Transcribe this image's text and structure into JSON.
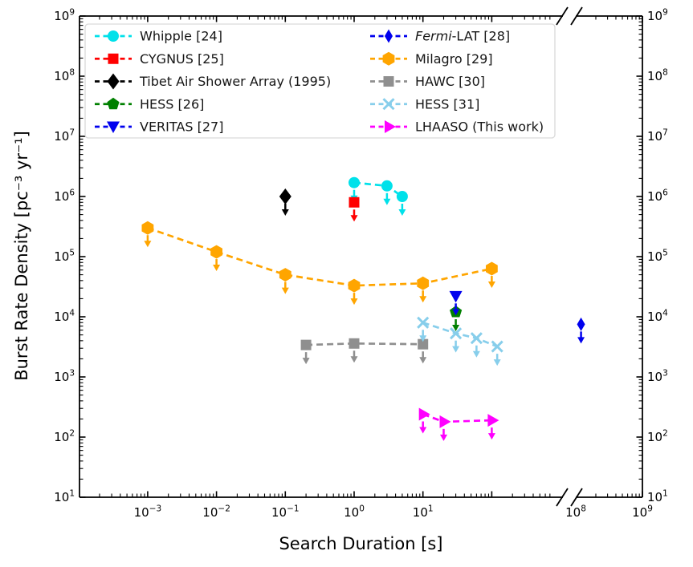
{
  "figure": {
    "xlabel": "Search Duration [s]",
    "ylabel": "Burst Rate Density [pc⁻³ yr⁻¹]"
  },
  "chart_data": {
    "type": "scatter",
    "title": "",
    "xlabel": "Search Duration [s]",
    "ylabel": "Burst Rate Density [pc⁻³ yr⁻¹]",
    "x_scale": "log",
    "y_scale": "log",
    "grid": false,
    "x_tick_exponents_left_segment": [
      -3,
      -2,
      -1,
      0,
      1
    ],
    "x_tick_exponents_right_segment": [
      8,
      9
    ],
    "x_axis_break": {
      "hidden_decades_between_exponents": [
        3,
        8
      ]
    },
    "y_tick_exponents": [
      1,
      2,
      3,
      4,
      5,
      6,
      7,
      8,
      9
    ],
    "y_axis_mirrored_labels": true,
    "legend": {
      "position": "upper left",
      "columns": 2,
      "frame": true
    },
    "all_points_are_upper_limits": true,
    "series": [
      {
        "slug": "whipple",
        "label": "Whipple [24]",
        "color": "#00e1ea",
        "marker": "circle",
        "column": 1,
        "points": [
          [
            1,
            1700000
          ],
          [
            3,
            1500000
          ],
          [
            5,
            1000000
          ]
        ]
      },
      {
        "slug": "cygnus",
        "label": "CYGNUS [25]",
        "color": "#ff0000",
        "marker": "square",
        "column": 1,
        "points": [
          [
            1,
            800000
          ]
        ]
      },
      {
        "slug": "tibet",
        "label": "Tibet Air Shower Array (1995)",
        "color": "#000000",
        "marker": "diamond",
        "column": 1,
        "points": [
          [
            0.1,
            1000000
          ]
        ]
      },
      {
        "slug": "hess-26",
        "label": "HESS [26]",
        "color": "#008000",
        "marker": "pentagon",
        "column": 1,
        "points": [
          [
            30,
            12000
          ]
        ]
      },
      {
        "slug": "veritas",
        "label": "VERITAS [27]",
        "color": "#0000ee",
        "marker": "triangle-down",
        "column": 1,
        "points": [
          [
            30,
            22000
          ]
        ]
      },
      {
        "slug": "fermi-lat",
        "label": "Fermi-LAT [28]",
        "italic_prefix": "Fermi",
        "color": "#0000ee",
        "marker": "thin-diamond",
        "column": 2,
        "points": [
          [
            120000000,
            7500
          ]
        ]
      },
      {
        "slug": "milagro",
        "label": "Milagro [29]",
        "color": "#ffa500",
        "marker": "hexagon",
        "column": 2,
        "points": [
          [
            0.001,
            300000
          ],
          [
            0.01,
            120000
          ],
          [
            0.1,
            50000
          ],
          [
            1,
            33000
          ],
          [
            10,
            36000
          ],
          [
            100,
            63000
          ]
        ]
      },
      {
        "slug": "hawc",
        "label": "HAWC [30]",
        "color": "#8f8f8f",
        "marker": "square",
        "column": 2,
        "points": [
          [
            0.2,
            3400
          ],
          [
            1,
            3600
          ],
          [
            10,
            3500
          ]
        ]
      },
      {
        "slug": "hess-31",
        "label": "HESS [31]",
        "color": "#87ceeb",
        "marker": "x",
        "column": 2,
        "points": [
          [
            10,
            8000
          ],
          [
            30,
            5300
          ],
          [
            60,
            4400
          ],
          [
            120,
            3200
          ]
        ]
      },
      {
        "slug": "lhaaso",
        "label": "LHAASO (This work)",
        "color": "#ff00ff",
        "marker": "triangle-right",
        "column": 2,
        "points": [
          [
            10,
            240
          ],
          [
            20,
            180
          ],
          [
            100,
            190
          ]
        ]
      }
    ]
  }
}
